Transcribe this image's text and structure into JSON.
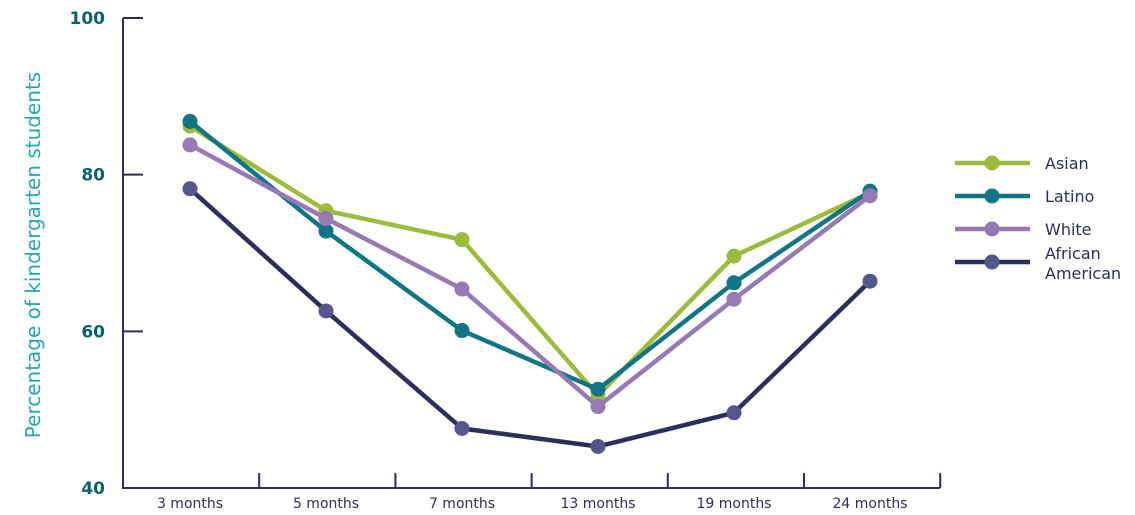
{
  "chart_data": {
    "type": "line",
    "ylabel": "Percentage of kindergarten students",
    "xlabel": "",
    "ylim": [
      40,
      100
    ],
    "yticks": [
      "100",
      "80",
      "60",
      "40"
    ],
    "ytick_values": [
      100,
      80,
      60,
      40
    ],
    "categories": [
      "3 months",
      "5 months",
      "7 months",
      "13 months",
      "19 months",
      "24 months"
    ],
    "series": [
      {
        "name": "Asian",
        "color": "#9dbb3c",
        "values": [
          86.2,
          75.4,
          71.7,
          51.8,
          69.6,
          77.7
        ]
      },
      {
        "name": "Latino",
        "color": "#117585",
        "values": [
          86.8,
          72.8,
          60.1,
          52.6,
          66.2,
          77.9
        ]
      },
      {
        "name": "White",
        "color": "#9779b4",
        "values": [
          83.8,
          74.4,
          65.4,
          50.4,
          64.1,
          77.3
        ]
      },
      {
        "name": "African American",
        "color": "#2b2f5a",
        "marker_color": "#55578a",
        "values": [
          78.2,
          62.6,
          47.6,
          45.3,
          49.6,
          66.4
        ]
      }
    ],
    "legend_position": "right",
    "grid": false
  }
}
